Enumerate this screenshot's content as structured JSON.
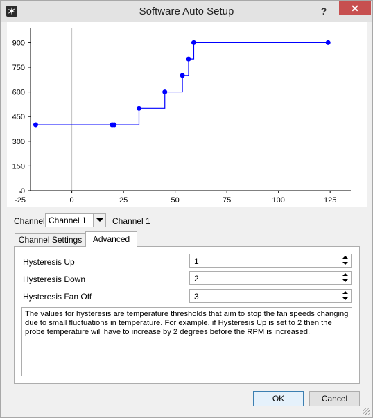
{
  "window": {
    "title": "Software Auto Setup",
    "help_label": "?",
    "close_label": "✕",
    "icon": "fan-icon"
  },
  "chart_data": {
    "type": "line",
    "step": true,
    "x": [
      -17.5,
      19.5,
      20.5,
      32.5,
      45,
      53.5,
      56.5,
      59,
      124
    ],
    "y": [
      400,
      400,
      400,
      500,
      600,
      700,
      800,
      900,
      900
    ],
    "xlim": [
      -20,
      135
    ],
    "ylim": [
      0,
      990
    ],
    "xticks": [
      -25,
      0,
      25,
      50,
      75,
      100,
      125
    ],
    "yticks": [
      0,
      150,
      300,
      450,
      600,
      750,
      900
    ],
    "xtick_labels": [
      "-25",
      "0",
      "25",
      "50",
      "75",
      "100",
      "125"
    ],
    "ytick_labels": [
      "0",
      "150",
      "300",
      "450",
      "600",
      "750",
      "900"
    ],
    "line_color": "#0000ff",
    "grid": false
  },
  "channel": {
    "label": "Channel",
    "selected": "Channel 1",
    "name": "Channel 1"
  },
  "tabs": [
    {
      "label": "Channel Settings",
      "active": false
    },
    {
      "label": "Advanced",
      "active": true
    }
  ],
  "advanced": {
    "hysteresis_up_label": "Hysteresis Up",
    "hysteresis_up_value": "1",
    "hysteresis_down_label": "Hysteresis Down",
    "hysteresis_down_value": "2",
    "hysteresis_fan_off_label": "Hysteresis Fan Off",
    "hysteresis_fan_off_value": "3",
    "info_text": "The values for hysteresis are temperature thresholds that aim to stop the fan speeds changing due to small fluctuations in temperature. For example, if Hysteresis Up is set to 2 then the probe temperature will have to increase by 2 degrees before the RPM is increased."
  },
  "buttons": {
    "ok": "OK",
    "cancel": "Cancel"
  }
}
